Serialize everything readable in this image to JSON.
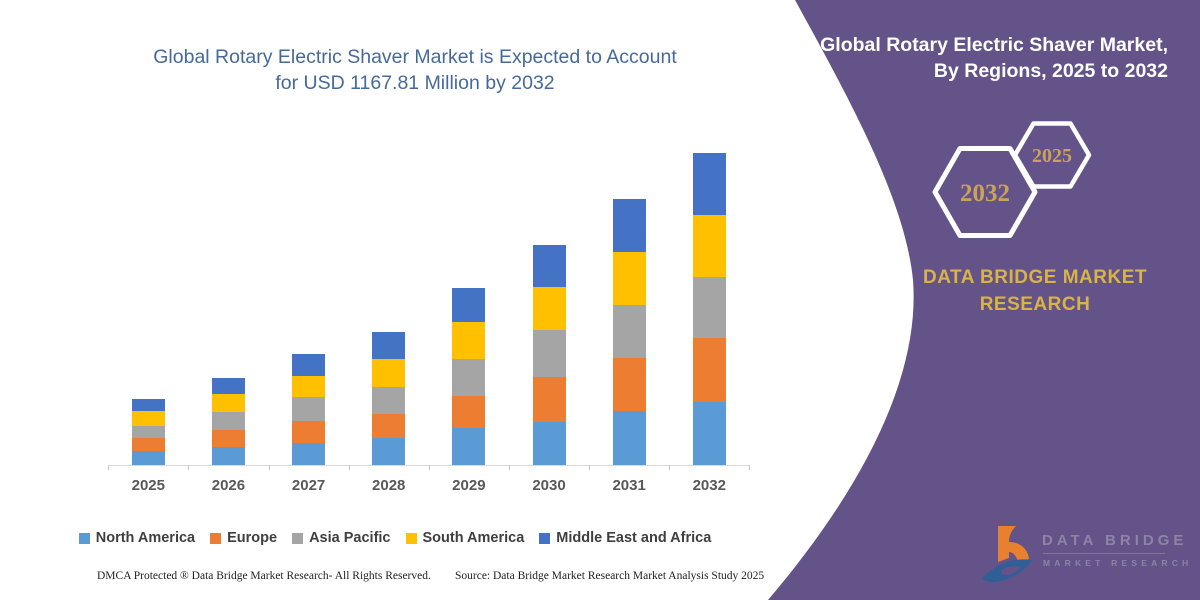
{
  "left_panel": {
    "title_lines": [
      "Global Rotary Electric Shaver Market is Expected to Account",
      "for USD 1167.81 Million by 2032"
    ]
  },
  "chart_data": {
    "type": "bar",
    "stacked": true,
    "title": "Global Rotary Electric Shaver Market is Expected to Account for USD 1167.81 Million by 2032",
    "unit": "USD Million",
    "categories": [
      "2025",
      "2026",
      "2027",
      "2028",
      "2029",
      "2030",
      "2031",
      "2032"
    ],
    "series": [
      {
        "name": "North America",
        "color": "#5B9BD5",
        "values": [
          52,
          69,
          81,
          102,
          140,
          160,
          202,
          237
        ]
      },
      {
        "name": "Europe",
        "color": "#ED7D31",
        "values": [
          48,
          65,
          81,
          91,
          119,
          169,
          197,
          241
        ]
      },
      {
        "name": "Asia Pacific",
        "color": "#A5A5A5",
        "values": [
          46,
          69,
          90,
          102,
          139,
          175,
          200,
          227
        ]
      },
      {
        "name": "South America",
        "color": "#FFC000",
        "values": [
          56,
          69,
          79,
          104,
          140,
          162,
          200,
          231
        ]
      },
      {
        "name": "Middle East and Africa",
        "color": "#4472C4",
        "values": [
          44,
          60,
          81,
          100,
          129,
          159,
          200,
          232
        ]
      }
    ],
    "totals": [
      246,
      332,
      412,
      499,
      667,
      825,
      999,
      1168
    ],
    "ylim": [
      0,
      1200
    ],
    "y_axis_visible": false,
    "grid": false,
    "legend_position": "bottom"
  },
  "footer": {
    "dmca": "DMCA Protected ® Data Bridge Market Research-  All Rights Reserved.",
    "source": "Source: Data Bridge Market Research  Market Analysis Study 2025"
  },
  "right_panel": {
    "title_lines": [
      "Global Rotary Electric Shaver Market,",
      "By Regions, 2025 to 2032"
    ],
    "hexagons": [
      {
        "label": "2032"
      },
      {
        "label": "2025"
      }
    ],
    "brand_lines": [
      "DATA BRIDGE MARKET",
      "RESEARCH"
    ],
    "logo": {
      "name": "DATA BRIDGE",
      "subtitle": "MARKET RESEARCH"
    }
  },
  "colors": {
    "panel_purple": "#635389",
    "title_blue": "#46699B",
    "panel_title_white": "#FFFFFF",
    "brand_gold": "#D9B347",
    "hex_label_gold": "#C9A35B",
    "hex_outline": "#FFFFFF",
    "axis_gray": "#D9D9D9",
    "xlabel_gray": "#595959",
    "legend_text": "#3F3F3F",
    "footer_black": "#1F1F1F",
    "logo_orange": "#E8812F",
    "logo_blue": "#2F5F96",
    "logo_text_gray": "#8B84A4"
  }
}
